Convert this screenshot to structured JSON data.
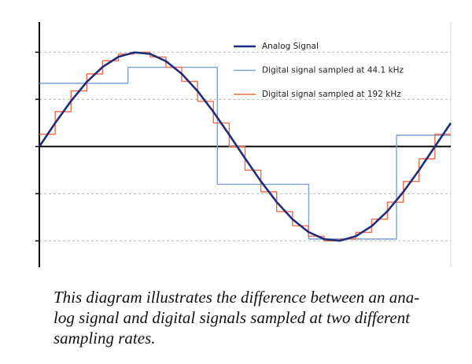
{
  "chart_data": {
    "type": "line",
    "series": [
      {
        "name": "Analog Signal",
        "color": "#1f2d7a",
        "style": "smooth",
        "x": [
          0,
          0.04,
          0.08,
          0.12,
          0.16,
          0.2,
          0.24,
          0.28,
          0.32,
          0.36,
          0.4,
          0.44,
          0.48,
          0.52,
          0.56,
          0.6,
          0.64,
          0.68,
          0.72,
          0.76,
          0.8,
          0.84,
          0.88,
          0.92,
          0.96,
          1.0,
          1.04
        ],
        "values": [
          0,
          0.249,
          0.482,
          0.685,
          0.844,
          0.951,
          0.998,
          0.982,
          0.905,
          0.771,
          0.588,
          0.368,
          0.125,
          -0.125,
          -0.368,
          -0.588,
          -0.771,
          -0.905,
          -0.982,
          -0.998,
          -0.951,
          -0.844,
          -0.685,
          -0.482,
          -0.249,
          0,
          0.249
        ]
      },
      {
        "name": "Digital signal sampled at 44.1 kHz",
        "color": "#7f9fd4",
        "style": "step",
        "x": [
          0,
          0.224,
          0.45,
          0.681,
          0.903
        ],
        "values": [
          0.67,
          0.84,
          -0.4,
          -0.98,
          0.12
        ]
      },
      {
        "name": "Digital signal sampled at 192 kHz",
        "color": "#f26a4b",
        "style": "step",
        "x": [
          0,
          0.04,
          0.08,
          0.12,
          0.16,
          0.2,
          0.24,
          0.28,
          0.32,
          0.36,
          0.4,
          0.44,
          0.48,
          0.52,
          0.56,
          0.6,
          0.64,
          0.68,
          0.72,
          0.76,
          0.8,
          0.84,
          0.88,
          0.92,
          0.96,
          1.0
        ],
        "values": [
          0.13,
          0.37,
          0.59,
          0.77,
          0.91,
          0.98,
          1.0,
          0.95,
          0.84,
          0.69,
          0.48,
          0.25,
          0,
          -0.25,
          -0.48,
          -0.69,
          -0.84,
          -0.95,
          -1.0,
          -0.98,
          -0.91,
          -0.77,
          -0.59,
          -0.37,
          -0.13,
          0.13
        ]
      }
    ],
    "xlim": [
      0,
      1.04
    ],
    "ylim": [
      -1.28,
      1.32
    ],
    "yticks": [
      -1,
      -0.5,
      0,
      0.5,
      1
    ],
    "grid": true,
    "legend": "top-right",
    "caption": [
      "This diagram illustrates the difference between an ana-",
      "log signal and digital signals sampled at two different",
      "sampling rates."
    ]
  }
}
